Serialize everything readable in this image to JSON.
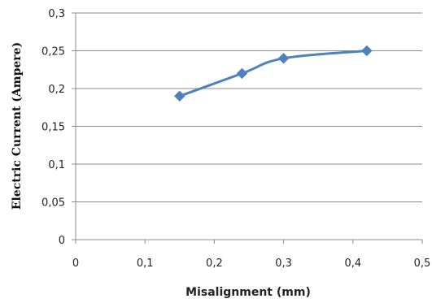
{
  "chart_data": {
    "type": "line",
    "title": "",
    "xlabel": "Misalignment (mm)",
    "ylabel": "Electric Current  (Ampere)",
    "xlim": [
      0,
      0.5
    ],
    "ylim": [
      0,
      0.3
    ],
    "x_ticks": [
      "0",
      "0,1",
      "0,2",
      "0,3",
      "0,4",
      "0,5"
    ],
    "y_ticks": [
      "0",
      "0,05",
      "0,1",
      "0,15",
      "0,2",
      "0,25",
      "0,3"
    ],
    "grid": "horizontal",
    "series": [
      {
        "x": [
          0.15,
          0.24,
          0.3,
          0.42
        ],
        "y": [
          0.19,
          0.22,
          0.24,
          0.25
        ],
        "color": "#4F81BD",
        "marker": "diamond",
        "smooth": true
      }
    ]
  }
}
